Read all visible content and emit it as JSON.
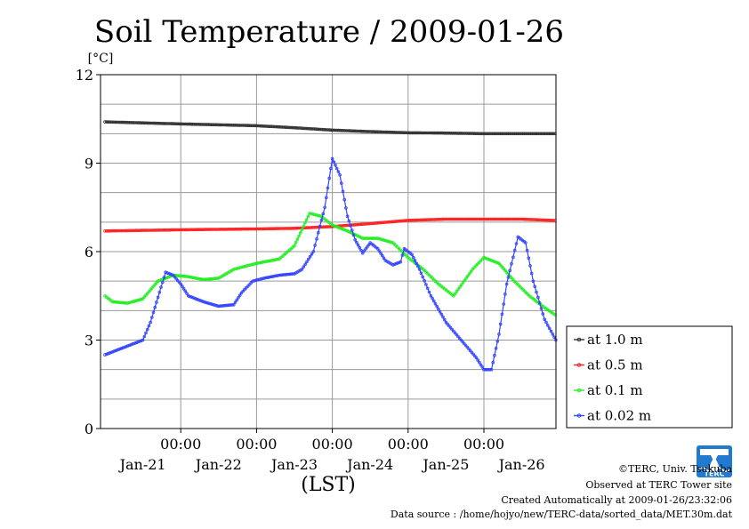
{
  "chart_data": {
    "type": "line",
    "title": "Soil Temperature / 2009-01-26",
    "yunit": "[°C]",
    "xlabel": "(LST)",
    "ylim": [
      0,
      12
    ],
    "yticks": [
      0,
      3,
      6,
      9,
      12
    ],
    "xlim_days": [
      0,
      6
    ],
    "xticks": [
      {
        "day": 1,
        "time": "00:00",
        "date": "Jan-22"
      },
      {
        "day": 2,
        "time": "00:00",
        "date": "Jan-23"
      },
      {
        "day": 3,
        "time": "00:00",
        "date": "Jan-24"
      },
      {
        "day": 4,
        "time": "00:00",
        "date": "Jan-25"
      },
      {
        "day": 5,
        "time": "00:00",
        "date": "Jan-26"
      }
    ],
    "first_date_label": "Jan-21",
    "grid": true,
    "legend_position": "right",
    "series": [
      {
        "name": "at 1.0 m",
        "color": "#333333",
        "points": [
          [
            0,
            10.4
          ],
          [
            1,
            10.33
          ],
          [
            2,
            10.27
          ],
          [
            2.5,
            10.2
          ],
          [
            3,
            10.12
          ],
          [
            3.5,
            10.07
          ],
          [
            4,
            10.03
          ],
          [
            4.5,
            10.02
          ],
          [
            5,
            10.0
          ],
          [
            6,
            10.0
          ]
        ]
      },
      {
        "name": "at 0.5 m",
        "color": "#ff2020",
        "points": [
          [
            0,
            6.7
          ],
          [
            1,
            6.74
          ],
          [
            2,
            6.77
          ],
          [
            2.5,
            6.79
          ],
          [
            3,
            6.85
          ],
          [
            3.5,
            6.95
          ],
          [
            4,
            7.06
          ],
          [
            4.5,
            7.1
          ],
          [
            5,
            7.1
          ],
          [
            5.5,
            7.1
          ],
          [
            6,
            7.05
          ]
        ]
      },
      {
        "name": "at 0.1 m",
        "color": "#22ee22",
        "points": [
          [
            0,
            4.5
          ],
          [
            0.1,
            4.3
          ],
          [
            0.3,
            4.25
          ],
          [
            0.5,
            4.4
          ],
          [
            0.7,
            5.0
          ],
          [
            0.9,
            5.2
          ],
          [
            1.1,
            5.15
          ],
          [
            1.3,
            5.05
          ],
          [
            1.5,
            5.1
          ],
          [
            1.7,
            5.4
          ],
          [
            2.0,
            5.6
          ],
          [
            2.3,
            5.75
          ],
          [
            2.5,
            6.2
          ],
          [
            2.7,
            7.3
          ],
          [
            2.85,
            7.2
          ],
          [
            3.0,
            6.9
          ],
          [
            3.2,
            6.7
          ],
          [
            3.4,
            6.45
          ],
          [
            3.6,
            6.45
          ],
          [
            3.8,
            6.3
          ],
          [
            4.0,
            5.8
          ],
          [
            4.2,
            5.4
          ],
          [
            4.4,
            4.9
          ],
          [
            4.6,
            4.5
          ],
          [
            4.85,
            5.4
          ],
          [
            5.0,
            5.8
          ],
          [
            5.2,
            5.6
          ],
          [
            5.4,
            5.0
          ],
          [
            5.6,
            4.5
          ],
          [
            5.8,
            4.1
          ],
          [
            6.0,
            3.75
          ],
          [
            6.2,
            4.0
          ],
          [
            6.35,
            4.5
          ],
          [
            6.5,
            4.6
          ],
          [
            6.7,
            4.4
          ],
          [
            6.8,
            4.3
          ]
        ]
      },
      {
        "name": "at 0.02 m",
        "color": "#3344ff",
        "points": [
          [
            0,
            2.5
          ],
          [
            0.1,
            2.6
          ],
          [
            0.3,
            2.8
          ],
          [
            0.5,
            3.0
          ],
          [
            0.6,
            3.6
          ],
          [
            0.8,
            5.3
          ],
          [
            0.9,
            5.2
          ],
          [
            1.0,
            4.9
          ],
          [
            1.1,
            4.5
          ],
          [
            1.3,
            4.3
          ],
          [
            1.5,
            4.15
          ],
          [
            1.7,
            4.2
          ],
          [
            1.8,
            4.6
          ],
          [
            1.95,
            5.0
          ],
          [
            2.1,
            5.1
          ],
          [
            2.3,
            5.2
          ],
          [
            2.5,
            5.25
          ],
          [
            2.6,
            5.4
          ],
          [
            2.75,
            6.0
          ],
          [
            2.9,
            7.5
          ],
          [
            3.0,
            9.15
          ],
          [
            3.1,
            8.6
          ],
          [
            3.2,
            7.2
          ],
          [
            3.3,
            6.4
          ],
          [
            3.4,
            5.95
          ],
          [
            3.5,
            6.3
          ],
          [
            3.6,
            6.1
          ],
          [
            3.7,
            5.7
          ],
          [
            3.8,
            5.55
          ],
          [
            3.9,
            5.65
          ],
          [
            3.95,
            6.1
          ],
          [
            4.05,
            5.9
          ],
          [
            4.15,
            5.4
          ],
          [
            4.3,
            4.5
          ],
          [
            4.5,
            3.6
          ],
          [
            4.7,
            3.0
          ],
          [
            4.9,
            2.4
          ],
          [
            5.0,
            2.0
          ],
          [
            5.1,
            2.0
          ],
          [
            5.2,
            3.2
          ],
          [
            5.3,
            4.9
          ],
          [
            5.45,
            6.5
          ],
          [
            5.55,
            6.3
          ],
          [
            5.65,
            5.0
          ],
          [
            5.8,
            3.7
          ],
          [
            5.95,
            3.0
          ],
          [
            6.1,
            2.4
          ],
          [
            6.3,
            1.7
          ],
          [
            6.5,
            1.3
          ],
          [
            6.7,
            1.2
          ],
          [
            6.85,
            1.25
          ],
          [
            6.95,
            2.6
          ],
          [
            7.05,
            3.7
          ],
          [
            7.2,
            4.4
          ],
          [
            7.35,
            3.5
          ],
          [
            7.5,
            2.8
          ],
          [
            7.65,
            2.35
          ],
          [
            7.75,
            2.3
          ]
        ]
      }
    ]
  },
  "footer": {
    "copyright": "©TERC, Univ. Tsukuba",
    "observed": "Observed at TERC Tower site",
    "created": "Created Automatically at 2009-01-26/23:32:06",
    "source": "Data source : /home/hojyo/new/TERC-data/sorted_data/MET.30m.dat"
  },
  "logo": {
    "text": "TERC",
    "color": "#1f7ad0"
  }
}
